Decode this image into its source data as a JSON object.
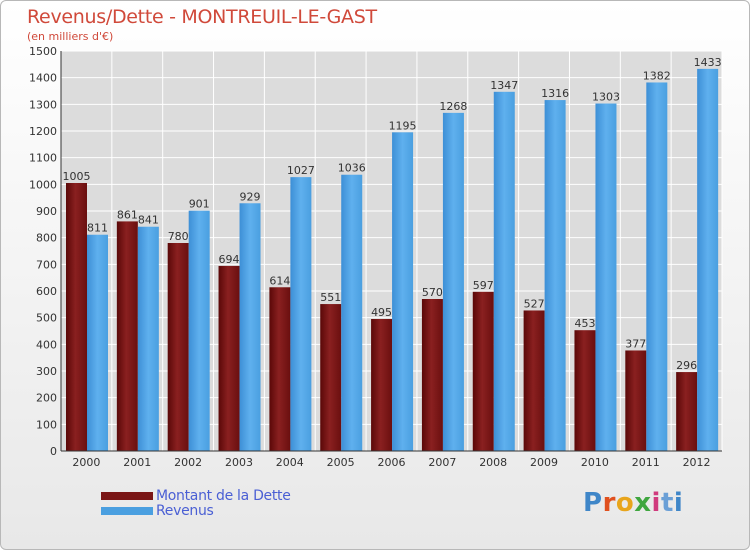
{
  "title": "Revenus/Dette - MONTREUIL-LE-GAST",
  "subtitle": "(en milliers d'€)",
  "chart_data": {
    "type": "bar",
    "categories": [
      "2000",
      "2001",
      "2002",
      "2003",
      "2004",
      "2005",
      "2006",
      "2007",
      "2008",
      "2009",
      "2010",
      "2011",
      "2012"
    ],
    "series": [
      {
        "name": "Montant de la Dette",
        "color": "#7a1515",
        "values": [
          1005,
          861,
          780,
          694,
          614,
          551,
          495,
          570,
          597,
          527,
          453,
          377,
          296
        ]
      },
      {
        "name": "Revenus",
        "color": "#4a9fe0",
        "values": [
          811,
          841,
          901,
          929,
          1027,
          1036,
          1195,
          1268,
          1347,
          1316,
          1303,
          1382,
          1433
        ]
      }
    ],
    "ylim": [
      0,
      1500
    ],
    "yticks": [
      0,
      100,
      200,
      300,
      400,
      500,
      600,
      700,
      800,
      900,
      1000,
      1100,
      1200,
      1300,
      1400,
      1500
    ],
    "legend_position": "bottom-left",
    "grid": true
  },
  "legend": {
    "items": [
      {
        "label": "Montant de la Dette",
        "color": "#7a1515"
      },
      {
        "label": "Revenus",
        "color": "#4a9fe0"
      }
    ]
  },
  "logo": {
    "text": "Proxiti"
  }
}
